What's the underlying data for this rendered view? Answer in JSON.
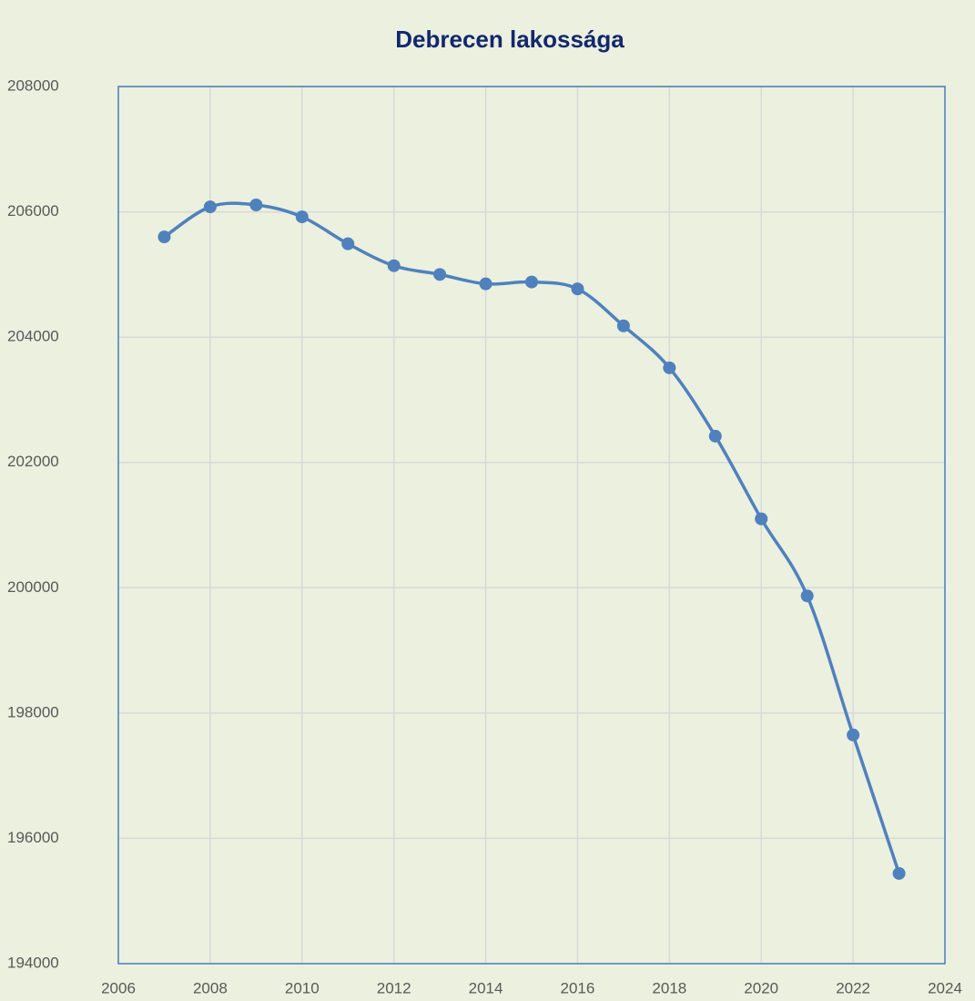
{
  "chart_data": {
    "type": "line",
    "title": "Debrecen lakossága",
    "x": [
      2007,
      2008,
      2009,
      2010,
      2011,
      2012,
      2013,
      2014,
      2015,
      2016,
      2017,
      2018,
      2019,
      2020,
      2021,
      2022,
      2023
    ],
    "series": [
      {
        "name": "Debrecen lakossága",
        "color": "#4f81bd",
        "values": [
          205600,
          206080,
          206110,
          205920,
          205490,
          205140,
          205000,
          204850,
          204880,
          204770,
          204180,
          203510,
          202420,
          201100,
          199870,
          197650,
          195440
        ]
      }
    ],
    "xlim": [
      2006,
      2024
    ],
    "xticks": [
      2006,
      2008,
      2010,
      2012,
      2014,
      2016,
      2018,
      2020,
      2022,
      2024
    ],
    "ylim": [
      194000,
      208000
    ],
    "yticks": [
      194000,
      196000,
      198000,
      200000,
      202000,
      204000,
      206000,
      208000
    ],
    "grid": true,
    "smooth": true
  }
}
